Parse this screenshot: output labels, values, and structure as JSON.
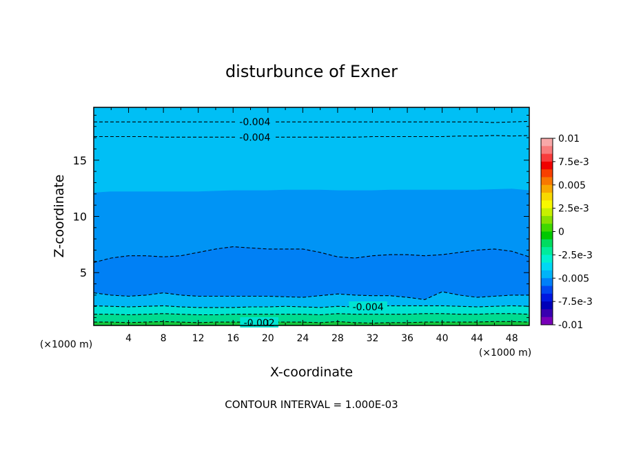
{
  "chart_data": {
    "type": "heatmap",
    "title": "disturbunce of Exner",
    "xlabel": "X-coordinate",
    "ylabel": "Z-coordinate",
    "x_unit_left": "(×1000 m)",
    "x_unit_right": "(×1000 m)",
    "footer": "CONTOUR INTERVAL = 1.000E-03",
    "xlim": [
      0,
      50
    ],
    "ylim": [
      0.3,
      19.7
    ],
    "x_ticks": [
      4,
      8,
      12,
      16,
      20,
      24,
      28,
      32,
      36,
      40,
      44,
      48
    ],
    "x_tick_labels": [
      "4",
      "8",
      "12",
      "16",
      "20",
      "24",
      "28",
      "32",
      "36",
      "40",
      "44",
      "48"
    ],
    "y_ticks": [
      5,
      10,
      15
    ],
    "y_tick_labels": [
      "5",
      "10",
      "15"
    ],
    "contour_interval": 0.001,
    "colorbar": {
      "min": -0.01,
      "max": 0.01,
      "labels": [
        "0.01",
        "7.5e-3",
        "0.005",
        "2.5e-3",
        "0",
        "-2.5e-3",
        "-0.005",
        "-7.5e-3",
        "-0.01"
      ],
      "label_values": [
        0.01,
        0.0075,
        0.005,
        0.0025,
        0,
        -0.0025,
        -0.005,
        -0.0075,
        -0.01
      ],
      "colors": [
        "#f8a8a8",
        "#f87c7c",
        "#f83c3c",
        "#f00000",
        "#f84000",
        "#f87800",
        "#f8a800",
        "#f8d800",
        "#f8f800",
        "#c8f000",
        "#88e000",
        "#40d800",
        "#00c800",
        "#00dc60",
        "#00ec9c",
        "#00f0d0",
        "#00d8f4",
        "#00b4f8",
        "#0080f8",
        "#0048f0",
        "#0018e0",
        "#0000b8",
        "#3800b0",
        "#7800b8"
      ]
    },
    "bands": [
      {
        "name": "z>=12.3",
        "value": -0.0041,
        "color": "#00bff5"
      },
      {
        "name": "6.5<z<12.3",
        "value": -0.005,
        "color": "#0094f5"
      },
      {
        "name": "3<z<6.5",
        "value": -0.0056,
        "color": "#0080f5"
      },
      {
        "name": "2<z<3",
        "value": -0.0045,
        "color": "#00b6f5"
      },
      {
        "name": "1.3<z<2",
        "value": -0.0033,
        "color": "#00e3d2"
      },
      {
        "name": "0.6<z<1.3",
        "value": -0.0026,
        "color": "#00dc90"
      },
      {
        "name": "z<0.6",
        "value": -0.0018,
        "color": "#14c83e"
      }
    ],
    "boundaries": {
      "x": [
        0,
        2,
        4,
        6,
        8,
        10,
        12,
        14,
        16,
        18,
        20,
        22,
        24,
        26,
        28,
        30,
        32,
        34,
        36,
        38,
        40,
        42,
        44,
        46,
        48,
        50
      ],
      "color_edges": [
        [
          12.1,
          12.2,
          12.2,
          12.2,
          12.2,
          12.2,
          12.2,
          12.25,
          12.3,
          12.3,
          12.3,
          12.35,
          12.35,
          12.35,
          12.3,
          12.3,
          12.3,
          12.35,
          12.35,
          12.35,
          12.35,
          12.35,
          12.35,
          12.4,
          12.45,
          12.3
        ],
        [
          5.9,
          6.3,
          6.5,
          6.5,
          6.4,
          6.5,
          6.8,
          7.1,
          7.3,
          7.2,
          7.1,
          7.1,
          7.1,
          6.8,
          6.4,
          6.3,
          6.5,
          6.6,
          6.6,
          6.5,
          6.6,
          6.8,
          7.0,
          7.1,
          6.9,
          6.4
        ],
        [
          3.2,
          3.0,
          2.9,
          3.0,
          3.2,
          3.0,
          2.9,
          2.9,
          2.9,
          2.9,
          2.9,
          2.85,
          2.8,
          2.95,
          3.1,
          3.0,
          2.95,
          2.95,
          2.8,
          2.6,
          3.3,
          3.0,
          2.8,
          2.9,
          3.0,
          3.0
        ],
        [
          2.05,
          2.0,
          1.95,
          2.0,
          2.05,
          1.95,
          1.9,
          1.9,
          1.9,
          1.95,
          1.95,
          2.0,
          1.95,
          1.9,
          2.0,
          1.95,
          2.0,
          2.05,
          2.05,
          2.05,
          2.05,
          2.0,
          1.95,
          2.0,
          2.05,
          2.0
        ],
        [
          1.3,
          1.3,
          1.25,
          1.3,
          1.35,
          1.3,
          1.25,
          1.25,
          1.3,
          1.3,
          1.3,
          1.3,
          1.3,
          1.25,
          1.35,
          1.3,
          1.3,
          1.3,
          1.3,
          1.35,
          1.35,
          1.3,
          1.3,
          1.35,
          1.35,
          1.3
        ],
        [
          0.6,
          0.6,
          0.55,
          0.6,
          0.65,
          0.6,
          0.55,
          0.6,
          0.6,
          0.6,
          0.6,
          0.6,
          0.6,
          0.55,
          0.65,
          0.55,
          0.5,
          0.55,
          0.55,
          0.6,
          0.6,
          0.6,
          0.6,
          0.65,
          0.65,
          0.6
        ]
      ],
      "dashed_contours": [
        [
          18.4,
          18.4,
          18.4,
          18.4,
          18.4,
          18.4,
          18.4,
          18.4,
          18.4,
          18.4,
          18.4,
          18.4,
          18.4,
          18.4,
          18.4,
          18.4,
          18.4,
          18.4,
          18.4,
          18.4,
          18.4,
          18.4,
          18.4,
          18.35,
          18.4,
          18.45
        ],
        [
          17.1,
          17.1,
          17.1,
          17.1,
          17.05,
          17.05,
          17.05,
          17.05,
          17.05,
          17.05,
          17.05,
          17.05,
          17.05,
          17.05,
          17.05,
          17.05,
          17.1,
          17.1,
          17.1,
          17.1,
          17.1,
          17.15,
          17.15,
          17.2,
          17.15,
          17.2
        ],
        [
          5.9,
          6.3,
          6.5,
          6.5,
          6.4,
          6.5,
          6.8,
          7.1,
          7.3,
          7.2,
          7.1,
          7.1,
          7.1,
          6.8,
          6.4,
          6.3,
          6.5,
          6.6,
          6.6,
          6.5,
          6.6,
          6.8,
          7.0,
          7.1,
          6.9,
          6.4
        ],
        [
          3.2,
          3.0,
          2.9,
          3.0,
          3.2,
          3.0,
          2.9,
          2.9,
          2.9,
          2.9,
          2.9,
          2.85,
          2.8,
          2.95,
          3.1,
          3.0,
          2.95,
          2.95,
          2.8,
          2.6,
          3.3,
          3.0,
          2.8,
          2.9,
          3.0,
          3.0
        ],
        [
          2.05,
          2.0,
          1.95,
          2.0,
          2.05,
          1.95,
          1.9,
          1.9,
          1.9,
          1.95,
          1.95,
          2.0,
          1.95,
          1.9,
          2.0,
          1.95,
          2.0,
          2.05,
          2.05,
          2.05,
          2.05,
          2.0,
          1.95,
          2.0,
          2.05,
          2.0
        ],
        [
          1.3,
          1.3,
          1.25,
          1.3,
          1.35,
          1.3,
          1.25,
          1.25,
          1.3,
          1.3,
          1.3,
          1.3,
          1.3,
          1.25,
          1.35,
          1.3,
          1.3,
          1.3,
          1.3,
          1.35,
          1.35,
          1.3,
          1.3,
          1.35,
          1.35,
          1.3
        ],
        [
          0.6,
          0.6,
          0.55,
          0.6,
          0.65,
          0.6,
          0.55,
          0.6,
          0.6,
          0.6,
          0.6,
          0.6,
          0.6,
          0.55,
          0.65,
          0.55,
          0.5,
          0.55,
          0.55,
          0.6,
          0.6,
          0.6,
          0.6,
          0.65,
          0.65,
          0.6
        ]
      ]
    },
    "contour_labels": [
      {
        "text": "-0.004",
        "x": 18.5,
        "y": 18.4
      },
      {
        "text": "-0.004",
        "x": 18.5,
        "y": 17.05
      },
      {
        "text": "-0.004",
        "x": 31.5,
        "y": 1.95
      },
      {
        "text": "-0.002",
        "x": 19.0,
        "y": 0.55
      }
    ]
  }
}
